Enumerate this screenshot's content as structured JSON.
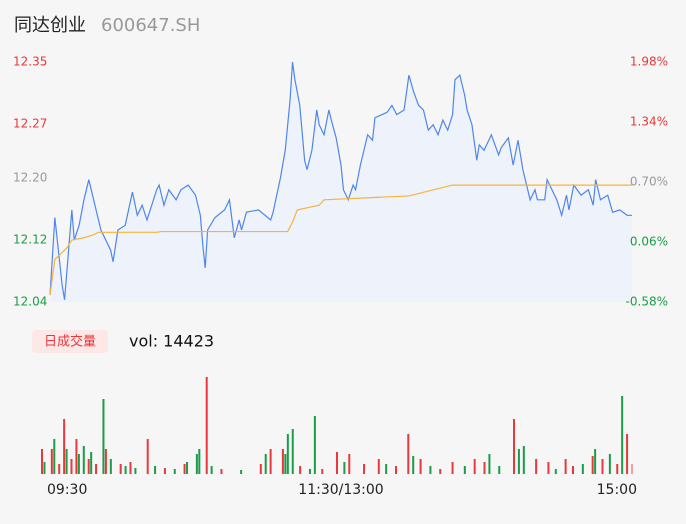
{
  "header": {
    "name": "同达创业",
    "code": "600647.SH"
  },
  "chart_data": [
    {
      "type": "line",
      "xlim": [
        0,
        240
      ],
      "ylim": [
        12.04,
        12.35
      ],
      "yticks": [
        12.04,
        12.12,
        {
          "value": 12.2,
          "label": "12.20"
        },
        12.27,
        12.35
      ],
      "ytick_colors": [
        "#1a9c48",
        "#1a9c48",
        "#999999",
        "#e8383b",
        "#e8383b"
      ],
      "y2lim": [
        -0.58,
        1.98
      ],
      "y2ticks": [
        {
          "value": -0.58,
          "label": "-0.58%"
        },
        {
          "value": 0.06,
          "label": "0.06%"
        },
        {
          "value": 0.7,
          "label": "0.70%"
        },
        {
          "value": 1.34,
          "label": "1.34%"
        },
        {
          "value": 1.98,
          "label": "1.98%"
        }
      ],
      "y2tick_colors": [
        "#1a9c48",
        "#1a9c48",
        "#999999",
        "#e8383b",
        "#e8383b"
      ],
      "series": [
        {
          "color": "#4f86ec",
          "fill": "#eef2fa",
          "x": [
            0,
            2,
            3,
            5,
            6,
            7,
            9,
            10,
            12,
            14,
            16,
            17,
            19,
            21,
            25,
            26,
            28,
            31,
            34,
            36,
            38,
            40,
            44,
            45,
            47,
            49,
            52,
            54,
            57,
            60,
            62,
            63,
            64,
            65,
            68,
            72,
            74,
            76,
            78,
            79,
            81,
            86,
            91,
            92,
            95,
            97,
            99,
            100,
            101,
            103,
            105,
            106,
            108,
            110,
            111,
            113,
            115,
            116,
            118,
            120,
            121,
            123,
            125,
            126,
            128,
            131,
            133,
            134,
            139,
            141,
            143,
            146,
            148,
            150,
            152,
            154,
            156,
            158,
            160,
            162,
            164,
            166,
            167,
            169,
            171,
            172,
            174,
            176,
            177,
            179,
            182,
            185,
            186,
            189,
            191,
            193,
            195,
            198,
            200,
            201,
            204,
            205,
            209,
            211,
            213,
            214,
            216,
            219,
            222,
            224,
            225,
            227,
            230,
            232,
            235,
            238,
            240
          ],
          "values": [
            12.049,
            12.149,
            12.12,
            12.062,
            12.043,
            12.081,
            12.159,
            12.12,
            12.139,
            12.172,
            12.198,
            12.185,
            12.159,
            12.133,
            12.107,
            12.092,
            12.133,
            12.139,
            12.182,
            12.152,
            12.165,
            12.146,
            12.185,
            12.191,
            12.165,
            12.185,
            12.172,
            12.185,
            12.191,
            12.178,
            12.152,
            12.114,
            12.084,
            12.133,
            12.149,
            12.159,
            12.172,
            12.123,
            12.146,
            12.133,
            12.156,
            12.159,
            12.146,
            12.156,
            12.2,
            12.236,
            12.301,
            12.35,
            12.327,
            12.294,
            12.223,
            12.211,
            12.236,
            12.288,
            12.269,
            12.256,
            12.288,
            12.275,
            12.252,
            12.217,
            12.185,
            12.172,
            12.191,
            12.185,
            12.217,
            12.256,
            12.249,
            12.278,
            12.285,
            12.294,
            12.282,
            12.288,
            12.333,
            12.311,
            12.294,
            12.288,
            12.262,
            12.269,
            12.256,
            12.275,
            12.262,
            12.282,
            12.327,
            12.333,
            12.307,
            12.288,
            12.269,
            12.223,
            12.243,
            12.236,
            12.256,
            12.23,
            12.239,
            12.252,
            12.217,
            12.249,
            12.211,
            12.172,
            12.185,
            12.172,
            12.172,
            12.198,
            12.172,
            12.152,
            12.178,
            12.159,
            12.191,
            12.178,
            12.185,
            12.165,
            12.198,
            12.172,
            12.178,
            12.156,
            12.159,
            12.152,
            12.152
          ]
        },
        {
          "color": "#f5b43c",
          "x": [
            0,
            2,
            4,
            7,
            9,
            14,
            18,
            20,
            44,
            46,
            98,
            100,
            102,
            111,
            113,
            148,
            166,
            240
          ],
          "values": [
            12.049,
            12.095,
            12.101,
            12.11,
            12.12,
            12.123,
            12.127,
            12.13,
            12.13,
            12.131,
            12.131,
            12.143,
            12.159,
            12.165,
            12.172,
            12.177,
            12.191,
            12.191
          ]
        }
      ]
    },
    {
      "type": "bar",
      "title": "日成交量",
      "subtitle": "vol: 14423",
      "xlim": [
        0,
        240
      ],
      "ylim": [
        0,
        1000
      ],
      "xticks": [
        {
          "value": 0,
          "label": "09:30"
        },
        {
          "value": 120,
          "label": "11:30/13:00"
        },
        {
          "value": 240,
          "label": "15:00"
        }
      ],
      "x": [
        0,
        1,
        4,
        5,
        7,
        9,
        10,
        12,
        14,
        15,
        17,
        19,
        20,
        22,
        25,
        26,
        28,
        32,
        34,
        36,
        38,
        43,
        46,
        50,
        54,
        58,
        59,
        63,
        64,
        67,
        69,
        73,
        81,
        89,
        91,
        93,
        98,
        99,
        100,
        102,
        105,
        109,
        111,
        114,
        120,
        123,
        125,
        131,
        137,
        140,
        144,
        149,
        151,
        154,
        158,
        162,
        167,
        172,
        176,
        180,
        182,
        186,
        192,
        194,
        196,
        201,
        206,
        209,
        213,
        216,
        220,
        224,
        225,
        228,
        231,
        234,
        236,
        238,
        240
      ],
      "values": [
        250,
        120,
        250,
        350,
        100,
        550,
        250,
        150,
        350,
        200,
        280,
        150,
        220,
        100,
        750,
        250,
        150,
        100,
        80,
        120,
        60,
        350,
        80,
        60,
        50,
        100,
        120,
        200,
        250,
        970,
        80,
        50,
        40,
        100,
        200,
        250,
        250,
        200,
        400,
        450,
        80,
        50,
        580,
        50,
        220,
        120,
        200,
        100,
        150,
        100,
        80,
        400,
        180,
        150,
        80,
        50,
        120,
        80,
        150,
        120,
        200,
        80,
        550,
        250,
        280,
        150,
        120,
        50,
        150,
        80,
        100,
        180,
        250,
        150,
        200,
        100,
        780,
        400,
        100
      ],
      "colors": [
        "#e8383b",
        "#1a9c48",
        "#e8383b",
        "#1a9c48",
        "#e8383b",
        "#e8383b",
        "#1a9c48",
        "#e8383b",
        "#e8383b",
        "#1a9c48",
        "#1a9c48",
        "#e8383b",
        "#1a9c48",
        "#e8383b",
        "#1a9c48",
        "#e8383b",
        "#1a9c48",
        "#e8383b",
        "#1a9c48",
        "#e8383b",
        "#1a9c48",
        "#e8383b",
        "#1a9c48",
        "#e8383b",
        "#1a9c48",
        "#e8383b",
        "#1a9c48",
        "#1a9c48",
        "#1a9c48",
        "#e8383b",
        "#1a9c48",
        "#e8383b",
        "#1a9c48",
        "#e8383b",
        "#1a9c48",
        "#e8383b",
        "#e8383b",
        "#1a9c48",
        "#1a9c48",
        "#1a9c48",
        "#e8383b",
        "#1a9c48",
        "#1a9c48",
        "#e8383b",
        "#e8383b",
        "#1a9c48",
        "#e8383b",
        "#e8383b",
        "#e8383b",
        "#1a9c48",
        "#e8383b",
        "#e8383b",
        "#1a9c48",
        "#e8383b",
        "#1a9c48",
        "#e8383b",
        "#e8383b",
        "#1a9c48",
        "#e8383b",
        "#e8383b",
        "#1a9c48",
        "#1a9c48",
        "#e8383b",
        "#1a9c48",
        "#1a9c48",
        "#e8383b",
        "#e8383b",
        "#1a9c48",
        "#e8383b",
        "#e8383b",
        "#1a9c48",
        "#e8383b",
        "#1a9c48",
        "#e8383b",
        "#1a9c48",
        "#e8383b",
        "#1a9c48",
        "#e8383b",
        "#f0a0a0"
      ]
    }
  ]
}
